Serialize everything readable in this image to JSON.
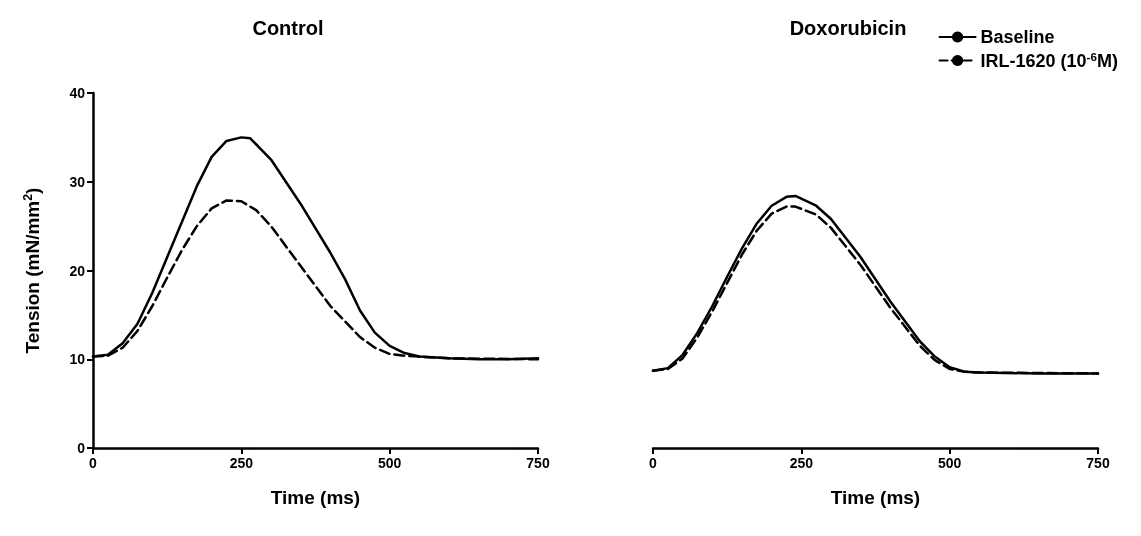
{
  "chart_data": [
    {
      "type": "line",
      "title": "Control",
      "xlabel": "Time (ms)",
      "ylabel": "Tension (mN/mm$^{2}$)",
      "xlim": [
        0,
        750
      ],
      "ylim": [
        0,
        40
      ],
      "xticks": [
        0,
        250,
        500,
        750
      ],
      "yticks": [
        0,
        10,
        20,
        30,
        40
      ],
      "grid": false,
      "legend": false,
      "marker": "none",
      "series": [
        {
          "color": "#000000",
          "line_style": "solid",
          "x": [
            0,
            25,
            50,
            75,
            100,
            125,
            150,
            175,
            200,
            225,
            250,
            265,
            300,
            350,
            400,
            425,
            450,
            475,
            500,
            525,
            550,
            600,
            650,
            700,
            750
          ],
          "values": [
            10.3,
            10.5,
            11.8,
            14,
            17.5,
            21.5,
            25.5,
            29.5,
            32.8,
            34.6,
            35,
            34.9,
            32.5,
            27.5,
            22,
            19,
            15.5,
            13,
            11.5,
            10.7,
            10.3,
            10.1,
            10,
            10,
            10.1
          ]
        },
        {
          "color": "#000000",
          "line_style": "dashed",
          "x": [
            0,
            25,
            50,
            75,
            100,
            125,
            150,
            175,
            200,
            225,
            250,
            275,
            300,
            350,
            400,
            450,
            475,
            500,
            525,
            550,
            600,
            750
          ],
          "values": [
            10.3,
            10.4,
            11.3,
            13.2,
            16,
            19.2,
            22.3,
            25,
            27,
            27.9,
            27.8,
            26.8,
            25,
            20.5,
            16,
            12.5,
            11.3,
            10.6,
            10.4,
            10.3,
            10.1,
            10
          ]
        }
      ]
    },
    {
      "type": "line",
      "title": "Doxorubicin",
      "xlabel": "Time (ms)",
      "xlim": [
        0,
        750
      ],
      "ylim": [
        0,
        40
      ],
      "xticks": [
        0,
        250,
        500,
        750
      ],
      "yticks": [
        0,
        10,
        20,
        30,
        40
      ],
      "tick_labels": "x",
      "grid": false,
      "legend": "top right",
      "marker": "none",
      "series": [
        {
          "name": "Baseline",
          "color": "#000000",
          "line_style": "solid",
          "x": [
            0,
            25,
            50,
            75,
            100,
            125,
            150,
            175,
            200,
            225,
            240,
            275,
            300,
            350,
            400,
            450,
            475,
            500,
            525,
            550,
            650,
            750
          ],
          "values": [
            8.7,
            9,
            10.5,
            13,
            16,
            19.3,
            22.5,
            25.3,
            27.3,
            28.3,
            28.4,
            27.3,
            25.8,
            21.5,
            16.5,
            12,
            10.3,
            9.1,
            8.6,
            8.5,
            8.4,
            8.4
          ]
        },
        {
          "name": "IRL-1620 (10$^{-6}$M)",
          "color": "#000000",
          "line_style": "dashed",
          "x": [
            0,
            25,
            50,
            75,
            100,
            125,
            150,
            175,
            200,
            225,
            240,
            275,
            300,
            350,
            400,
            450,
            475,
            500,
            525,
            550,
            750
          ],
          "values": [
            8.7,
            8.9,
            10.1,
            12.5,
            15.4,
            18.6,
            21.8,
            24.5,
            26.4,
            27.2,
            27.2,
            26.3,
            24.8,
            20.6,
            15.8,
            11.5,
            9.9,
            8.9,
            8.6,
            8.5,
            8.4
          ]
        }
      ]
    }
  ]
}
